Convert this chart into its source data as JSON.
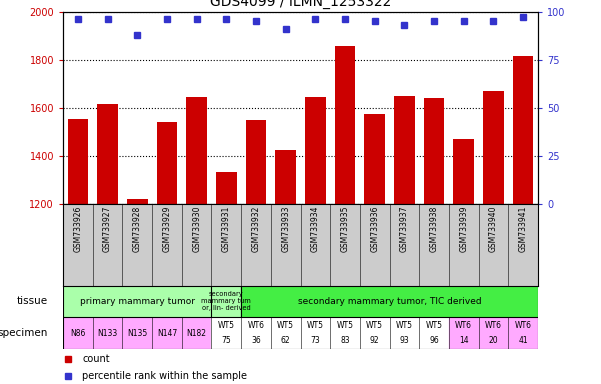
{
  "title": "GDS4099 / ILMN_1253322",
  "samples": [
    "GSM733926",
    "GSM733927",
    "GSM733928",
    "GSM733929",
    "GSM733930",
    "GSM733931",
    "GSM733932",
    "GSM733933",
    "GSM733934",
    "GSM733935",
    "GSM733936",
    "GSM733937",
    "GSM733938",
    "GSM733939",
    "GSM733940",
    "GSM733941"
  ],
  "counts": [
    1552,
    1615,
    1220,
    1540,
    1645,
    1330,
    1548,
    1425,
    1645,
    1855,
    1572,
    1648,
    1638,
    1470,
    1668,
    1815
  ],
  "percentile_ranks": [
    96,
    96,
    88,
    96,
    96,
    96,
    95,
    91,
    96,
    96,
    95,
    93,
    95,
    95,
    95,
    97
  ],
  "bar_color": "#cc0000",
  "dot_color": "#3333cc",
  "ylim_left": [
    1200,
    2000
  ],
  "ylim_right": [
    0,
    100
  ],
  "yticks_left": [
    1200,
    1400,
    1600,
    1800,
    2000
  ],
  "yticks_right": [
    0,
    25,
    50,
    75,
    100
  ],
  "tissue_bounds": [
    {
      "start": 0,
      "end": 4,
      "color": "#aaffaa",
      "label": "primary mammary tumor",
      "fontsize": 6.5
    },
    {
      "start": 5,
      "end": 5,
      "color": "#aaffaa",
      "label": "secondary\nmammary tum\nor, lin- derived",
      "fontsize": 4.8
    },
    {
      "start": 6,
      "end": 15,
      "color": "#44ee44",
      "label": "secondary mammary tumor, TIC derived",
      "fontsize": 6.5
    }
  ],
  "specimen_labels_line1": [
    "N86",
    "N133",
    "N135",
    "N147",
    "N182",
    "WT5",
    "WT6",
    "WT5",
    "WT5",
    "WT5",
    "WT5",
    "WT5",
    "WT5",
    "WT6",
    "WT6",
    "WT6"
  ],
  "specimen_labels_line2": [
    "",
    "",
    "",
    "",
    "",
    "75",
    "36",
    "62",
    "73",
    "83",
    "92",
    "93",
    "96",
    "14",
    "20",
    "41"
  ],
  "specimen_colors": [
    "#ffaaff",
    "#ffaaff",
    "#ffaaff",
    "#ffaaff",
    "#ffaaff",
    "#ffffff",
    "#ffffff",
    "#ffffff",
    "#ffffff",
    "#ffffff",
    "#ffffff",
    "#ffffff",
    "#ffffff",
    "#ffaaff",
    "#ffaaff",
    "#ffaaff"
  ],
  "bg_color": "#cccccc",
  "legend_count_color": "#cc0000",
  "legend_percentile_color": "#3333cc",
  "left_label_color": "#cc0000",
  "right_label_color": "#3333cc"
}
